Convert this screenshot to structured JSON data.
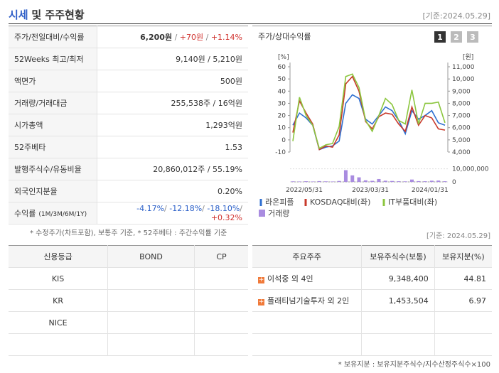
{
  "header": {
    "title_main": "시세",
    "title_rest": "및 주주현황",
    "date": "[기준:2024.05.29]"
  },
  "summary": {
    "rows": [
      {
        "label": "주가/전일대비/수익률",
        "value": [
          "6,200원",
          " / ",
          "+70원",
          " / ",
          "+1.14%"
        ]
      },
      {
        "label": "52Weeks 최고/최저",
        "value": [
          "9,140원 / 5,210원"
        ]
      },
      {
        "label": "액면가",
        "value": [
          "500원"
        ]
      },
      {
        "label": "거래량/거래대금",
        "value": [
          "255,538주 / 16억원"
        ]
      },
      {
        "label": "시가총액",
        "value": [
          "1,293억원"
        ]
      },
      {
        "label": "52주베타",
        "value": [
          "1.53"
        ]
      },
      {
        "label": "발행주식수/유동비율",
        "value": [
          "20,860,012주 / 55.19%"
        ]
      },
      {
        "label": "외국인지분율",
        "value": [
          "0.20%"
        ]
      },
      {
        "label": "수익률",
        "label_note": "(1M/3M/6M/1Y)",
        "value": [
          "-4.17%",
          "/ ",
          "-12.18%",
          "/ ",
          "-18.10%",
          "/ ",
          "+0.32%"
        ]
      }
    ],
    "note": "* 수정주가(차트포함), 보통주 기준, * 52주베타 : 주간수익률 기준",
    "date": "[기준: 2024.05.29]"
  },
  "chart_data": {
    "type": "line",
    "title": "주가/상대수익률",
    "buttons": [
      "1",
      "2",
      "3"
    ],
    "y_unit": "[%]",
    "y2_unit": "[원]",
    "categories": [
      "2022/05/31",
      null,
      null,
      null,
      null,
      null,
      null,
      null,
      null,
      null,
      "2023/03/31",
      null,
      null,
      null,
      null,
      null,
      null,
      null,
      null,
      "2024/01/31",
      null,
      null,
      null,
      null
    ],
    "series": [
      {
        "name": "라온피플",
        "color": "#2f6fd0",
        "axis": "y2",
        "values": [
          6200,
          7200,
          6800,
          6200,
          4200,
          4400,
          4500,
          4900,
          8000,
          8700,
          8400,
          6700,
          6300,
          7000,
          7700,
          7400,
          6600,
          5500,
          7400,
          6700,
          7000,
          7400,
          6400,
          6200
        ]
      },
      {
        "name": "KOSDAQ대비(좌)",
        "color": "#c8392b",
        "values": [
          6,
          32,
          22,
          13,
          -8,
          -5,
          -6,
          4,
          46,
          52,
          40,
          15,
          9,
          19,
          22,
          21,
          13,
          7,
          27,
          12,
          20,
          18,
          9,
          8
        ]
      },
      {
        "name": "IT부품대비(좌)",
        "color": "#8cc63f",
        "values": [
          -1,
          35,
          20,
          12,
          -7,
          -4,
          -3,
          11,
          52,
          54,
          43,
          16,
          7,
          20,
          34,
          29,
          16,
          13,
          41,
          13,
          30,
          30,
          31,
          14
        ]
      }
    ],
    "volume": {
      "name": "거래량",
      "color": "#a98ce0",
      "values": [
        400000,
        300000,
        500000,
        300000,
        600000,
        400000,
        300000,
        700000,
        9000000,
        5000000,
        3500000,
        1200000,
        800000,
        2200000,
        900000,
        700000,
        500000,
        400000,
        1800000,
        600000,
        500000,
        900000,
        1000000,
        500000
      ]
    },
    "ylim": [
      -10,
      60
    ],
    "yticks": [
      -10,
      0,
      10,
      20,
      30,
      40,
      50,
      60
    ],
    "y2lim": [
      4000,
      11000
    ],
    "y2ticks": [
      {
        "value": 4000,
        "label": "4,000"
      },
      {
        "value": 5000,
        "label": "5,000"
      },
      {
        "value": 6000,
        "label": "6,000"
      },
      {
        "value": 7000,
        "label": "7,000"
      },
      {
        "value": 8000,
        "label": "8,000"
      },
      {
        "value": 9000,
        "label": "9,000"
      },
      {
        "value": 10000,
        "label": "10,000"
      },
      {
        "value": 11000,
        "label": "11,000"
      }
    ],
    "y3lim": [
      0,
      12000000
    ],
    "y3ticks": [
      0,
      {
        "value": 10000000,
        "label": "10,000,000"
      }
    ]
  },
  "credit": {
    "headers": [
      "신용등급",
      "BOND",
      "CP"
    ],
    "rows": [
      "KIS",
      "KR",
      "NICE"
    ]
  },
  "shareholders": {
    "headers": [
      "주요주주",
      "보유주식수(보통)",
      "보유지분(%)"
    ],
    "rows": [
      [
        "이석중 외 4인",
        "9,348,400",
        "44.81"
      ],
      [
        "플래티넘기술투자 외 2인",
        "1,453,504",
        "6.97"
      ]
    ],
    "note": "* 보유지분 : 보유지분주식수/지수산정주식수×100"
  }
}
